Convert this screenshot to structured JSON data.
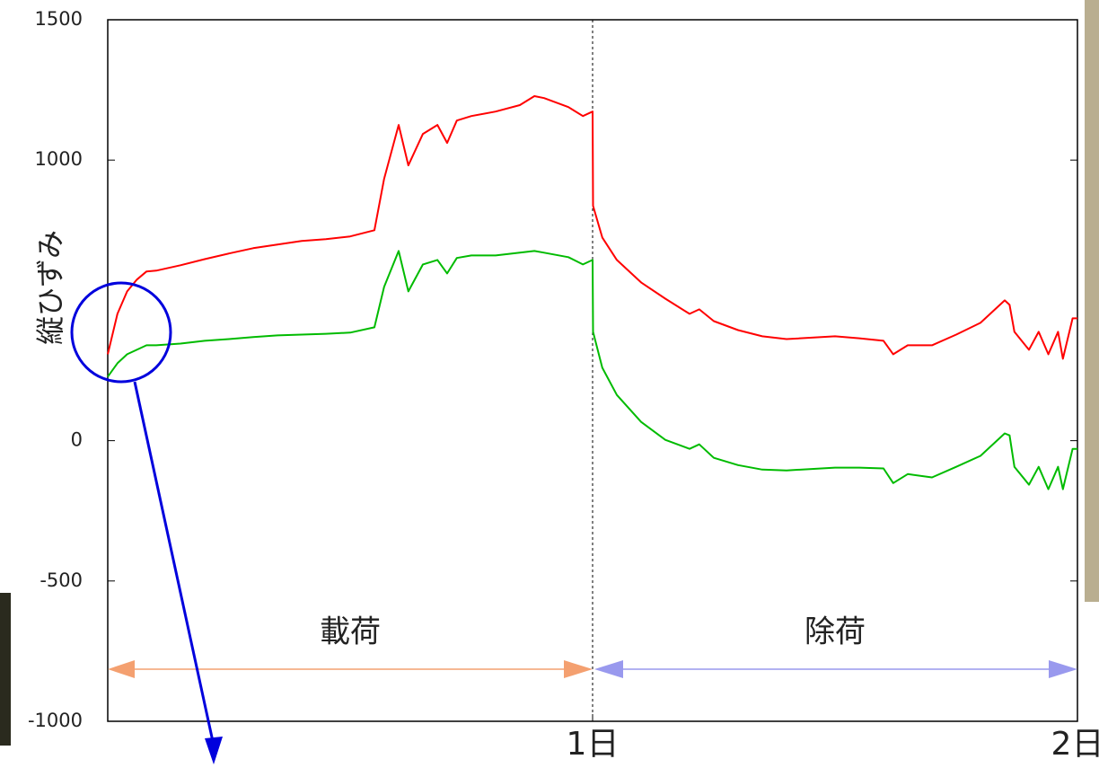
{
  "chart_data": {
    "type": "line",
    "ylabel": "縦ひずみ",
    "annotations": [
      "載荷",
      "除荷"
    ],
    "xlim": [
      0,
      2
    ],
    "ylim": [
      -1000,
      1500
    ],
    "xticks": [
      {
        "value": 1,
        "label": "1日"
      },
      {
        "value": 2,
        "label": "2日"
      }
    ],
    "yticks": [
      -1000,
      -500,
      0,
      1000,
      1500
    ],
    "grid": false,
    "x": [
      0,
      0.02,
      0.04,
      0.06,
      0.08,
      0.1,
      0.15,
      0.2,
      0.25,
      0.3,
      0.35,
      0.4,
      0.45,
      0.5,
      0.55,
      0.57,
      0.6,
      0.62,
      0.65,
      0.68,
      0.7,
      0.72,
      0.75,
      0.8,
      0.85,
      0.88,
      0.9,
      0.95,
      0.98,
      1.0,
      1.001,
      1.02,
      1.05,
      1.1,
      1.15,
      1.2,
      1.22,
      1.25,
      1.3,
      1.35,
      1.4,
      1.5,
      1.55,
      1.6,
      1.62,
      1.65,
      1.7,
      1.75,
      1.8,
      1.85,
      1.86,
      1.87,
      1.9,
      1.92,
      1.94,
      1.96,
      1.97,
      1.99,
      2.0
    ],
    "series": [
      {
        "color": "#ff0000",
        "values": [
          308,
          452,
          532,
          574,
          603,
          606,
          625,
          647,
          667,
          686,
          699,
          712,
          718,
          728,
          750,
          933,
          1125,
          981,
          1093,
          1125,
          1061,
          1141,
          1157,
          1173,
          1196,
          1228,
          1221,
          1189,
          1157,
          1173,
          837,
          724,
          644,
          564,
          506,
          452,
          468,
          426,
          394,
          372,
          362,
          372,
          365,
          356,
          308,
          340,
          340,
          378,
          420,
          500,
          484,
          388,
          324,
          388,
          308,
          388,
          292,
          436,
          436
        ]
      },
      {
        "color": "#00bb00",
        "values": [
          228,
          276,
          308,
          324,
          340,
          340,
          346,
          356,
          362,
          369,
          375,
          378,
          381,
          385,
          404,
          548,
          676,
          532,
          628,
          644,
          596,
          651,
          660,
          660,
          670,
          676,
          670,
          654,
          628,
          644,
          388,
          260,
          163,
          67,
          3,
          -29,
          -13,
          -61,
          -87,
          -103,
          -106,
          -96,
          -96,
          -99,
          -151,
          -119,
          -131,
          -93,
          -54,
          26,
          19,
          -93,
          -157,
          -93,
          -173,
          -93,
          -173,
          -29,
          -29
        ]
      }
    ]
  }
}
